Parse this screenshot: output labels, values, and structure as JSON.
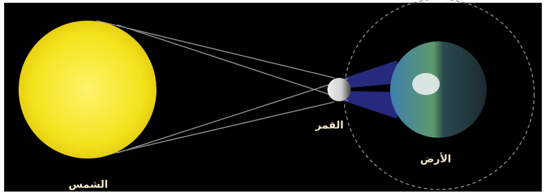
{
  "nodes": [
    {
      "label": "الشمس"
    },
    {
      "label": "القمر"
    },
    {
      "label": "الأرض"
    }
  ]
}
